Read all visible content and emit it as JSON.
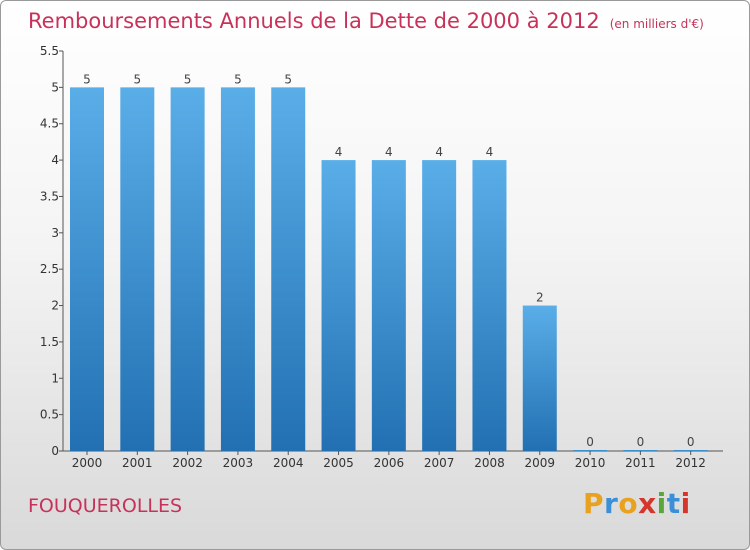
{
  "title": "Remboursements Annuels de la Dette de 2000 à 2012",
  "title_unit": "(en milliers d'€)",
  "commune": "FOUQUEROLLES",
  "logo": {
    "letters": [
      "P",
      "r",
      "o",
      "x",
      "i",
      "t",
      "i"
    ],
    "colors": [
      "#e8a21f",
      "#3a8fd6",
      "#e8a21f",
      "#d6352b",
      "#5aa63a",
      "#3a8fd6",
      "#d6352b"
    ]
  },
  "colors": {
    "title": "#c8325a",
    "bar_top": "#5aaee8",
    "bar_bottom": "#2270b2"
  },
  "chart_data": {
    "type": "bar",
    "categories": [
      "2000",
      "2001",
      "2002",
      "2003",
      "2004",
      "2005",
      "2006",
      "2007",
      "2008",
      "2009",
      "2010",
      "2011",
      "2012"
    ],
    "values": [
      5,
      5,
      5,
      5,
      5,
      4,
      4,
      4,
      4,
      2,
      0,
      0,
      0
    ],
    "data_labels": [
      "5",
      "5",
      "5",
      "5",
      "5",
      "4",
      "4",
      "4",
      "4",
      "2",
      "0",
      "0",
      "0"
    ],
    "ylim": [
      0,
      5.5
    ],
    "yticks": [
      "0",
      "0.5",
      "1",
      "1.5",
      "2",
      "2.5",
      "3",
      "3.5",
      "4",
      "4.5",
      "5",
      "5.5"
    ],
    "title": "Remboursements Annuels de la Dette de 2000 à 2012",
    "xlabel": "",
    "ylabel": "",
    "grid": false
  }
}
